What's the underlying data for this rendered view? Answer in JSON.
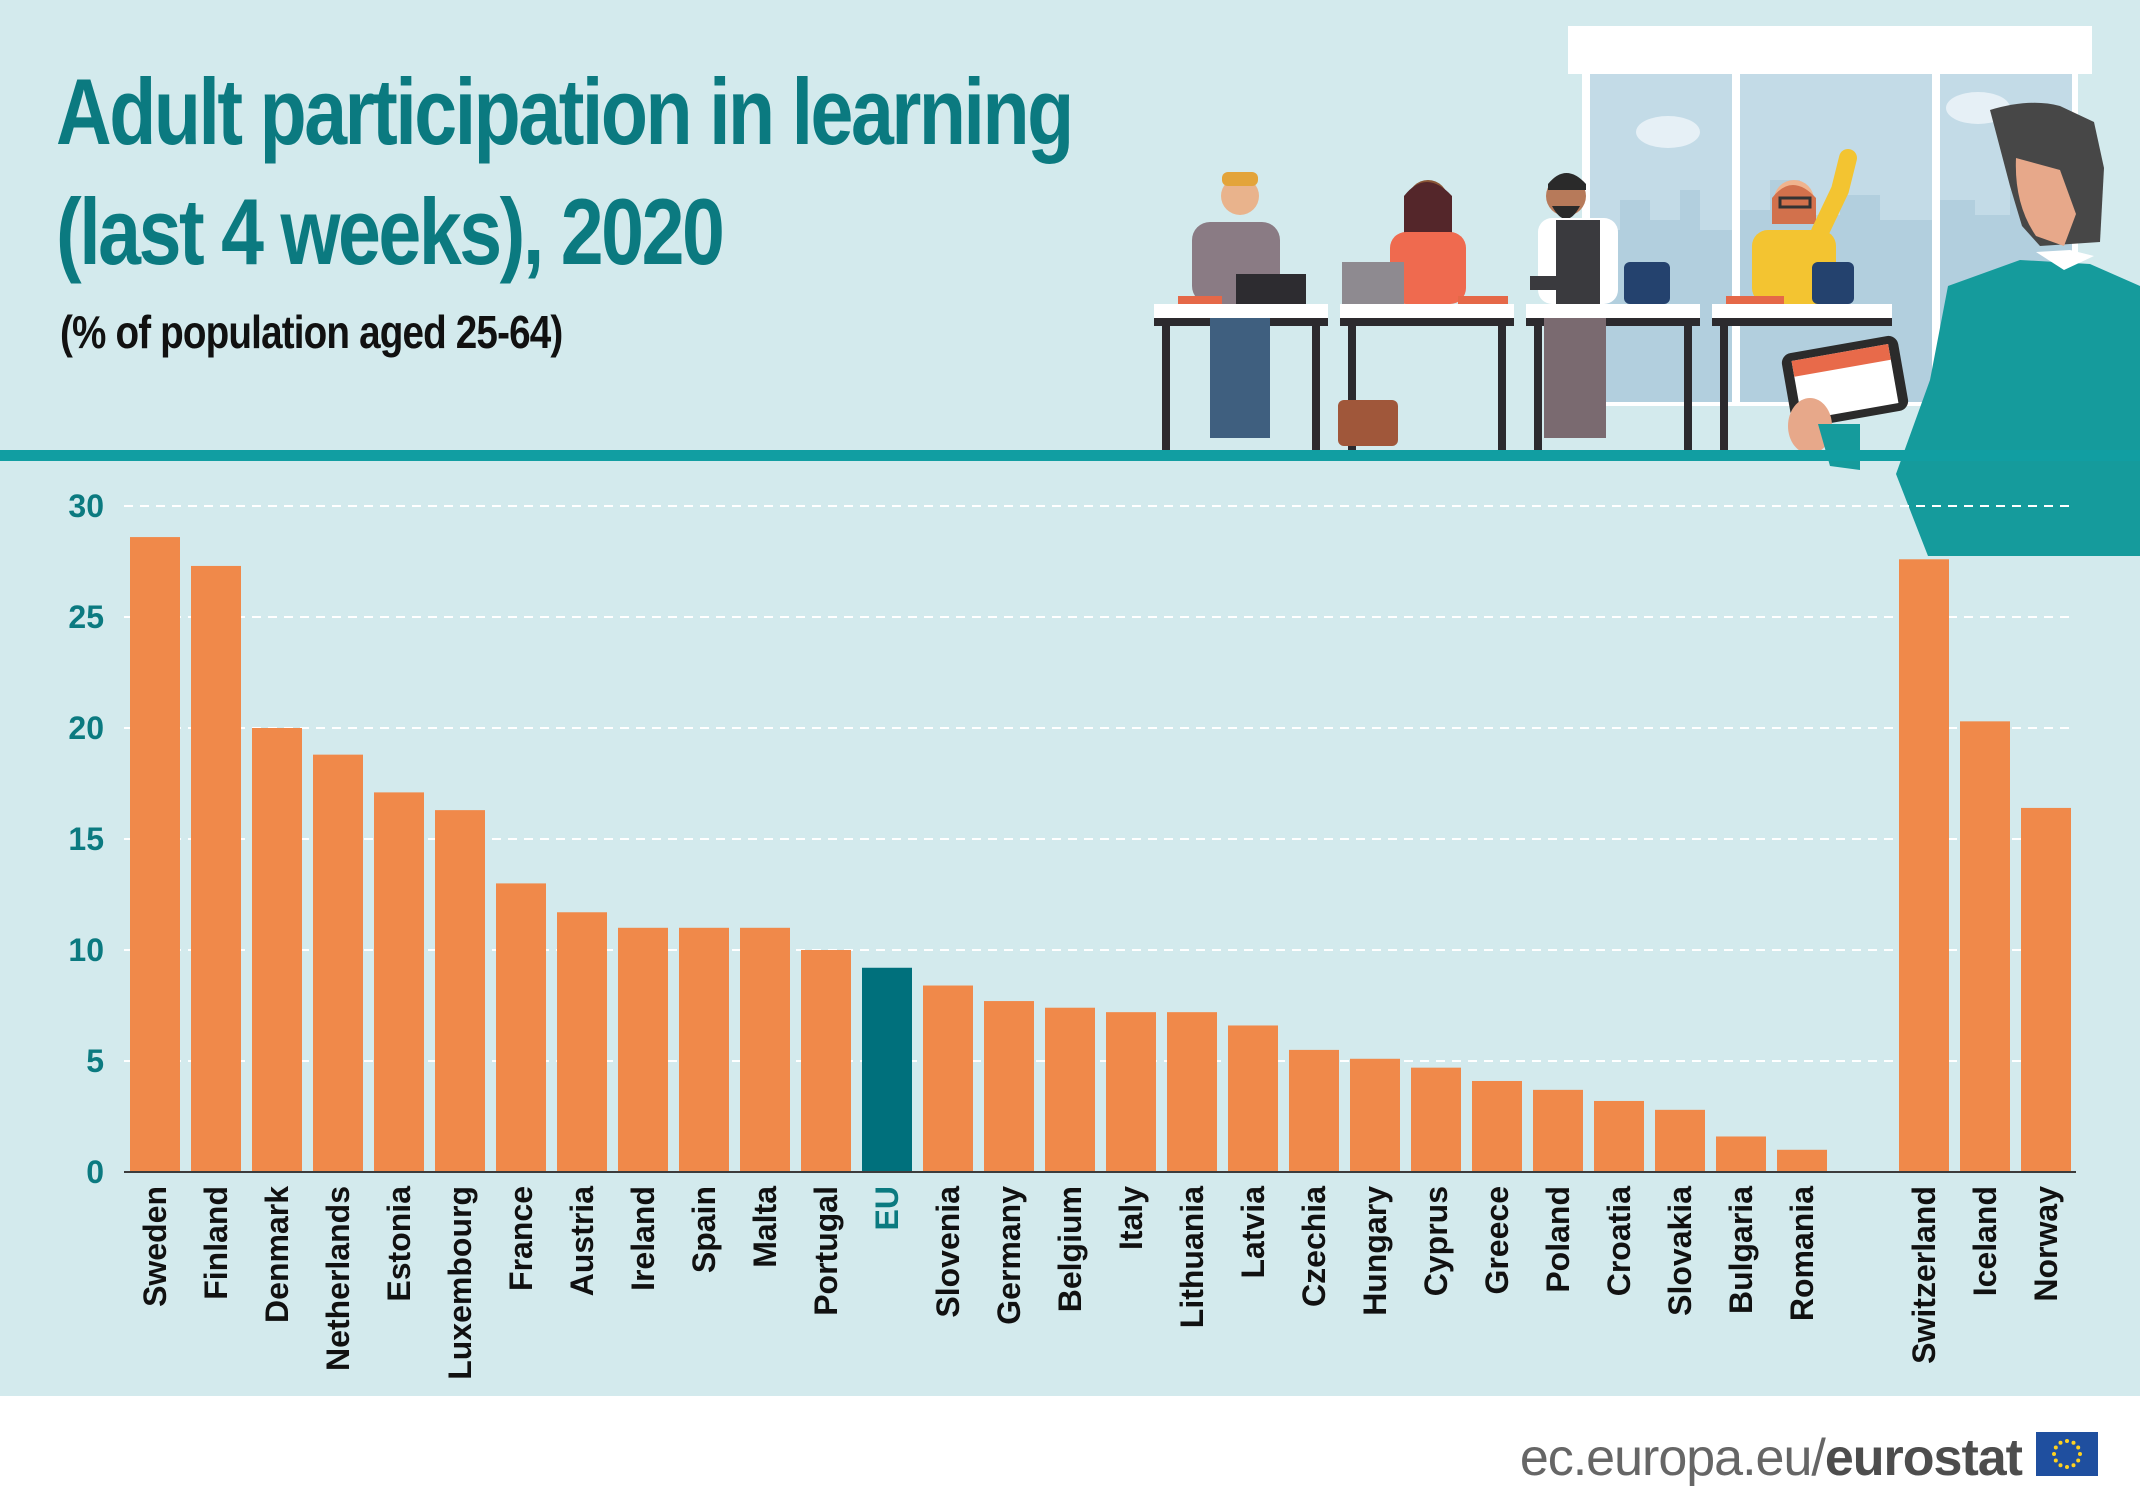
{
  "header": {
    "title_line1": "Adult participation in learning",
    "title_line2": "(last 4 weeks), 2020",
    "subtitle": "(% of population aged 25-64)"
  },
  "footer": {
    "url_prefix": "ec.europa.eu/",
    "url_brand": "eurostat"
  },
  "colors": {
    "bar": "#f0894a",
    "highlight": "#00707c",
    "background": "#d3eaed",
    "accent": "#119ea2"
  },
  "illustration": {
    "description_icon": "classroom-illustration-icon",
    "flag_icon": "eu-flag-icon"
  },
  "chart_data": {
    "type": "bar",
    "title": "Adult participation in learning (last 4 weeks), 2020",
    "subtitle": "(% of population aged 25-64)",
    "categories": [
      "Sweden",
      "Finland",
      "Denmark",
      "Netherlands",
      "Estonia",
      "Luxembourg",
      "France",
      "Austria",
      "Ireland",
      "Spain",
      "Malta",
      "Portugal",
      "EU",
      "Slovenia",
      "Germany",
      "Belgium",
      "Italy",
      "Lithuania",
      "Latvia",
      "Czechia",
      "Hungary",
      "Cyprus",
      "Greece",
      "Poland",
      "Croatia",
      "Slovakia",
      "Bulgaria",
      "Romania",
      "Switzerland",
      "Iceland",
      "Norway"
    ],
    "values": [
      28.6,
      27.3,
      20.0,
      18.8,
      17.1,
      16.3,
      13.0,
      11.7,
      11.0,
      11.0,
      11.0,
      10.0,
      9.2,
      8.4,
      7.7,
      7.4,
      7.2,
      7.2,
      6.6,
      5.5,
      5.1,
      4.7,
      4.1,
      3.7,
      3.2,
      2.8,
      1.6,
      1.0,
      27.6,
      20.3,
      16.4
    ],
    "highlight": "EU",
    "ylim": [
      0,
      30
    ],
    "yticks": [
      0,
      5,
      10,
      15,
      20,
      25,
      30
    ],
    "grid": true,
    "xlabel": "",
    "ylabel": ""
  }
}
